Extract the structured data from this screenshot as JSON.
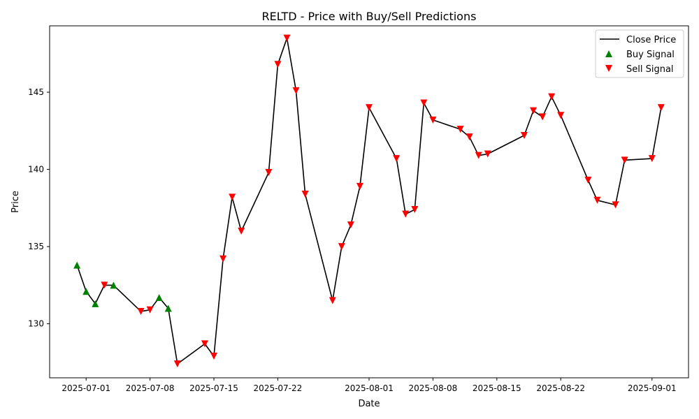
{
  "chart_data": {
    "type": "line",
    "title": "RELTD - Price with Buy/Sell Predictions",
    "xlabel": "Date",
    "ylabel": "Price",
    "x_ticks": [
      {
        "label": "2025-07-01",
        "day": 1
      },
      {
        "label": "2025-07-08",
        "day": 8
      },
      {
        "label": "2025-07-15",
        "day": 15
      },
      {
        "label": "2025-07-22",
        "day": 22
      },
      {
        "label": "2025-08-01",
        "day": 32
      },
      {
        "label": "2025-08-08",
        "day": 39
      },
      {
        "label": "2025-08-15",
        "day": 46
      },
      {
        "label": "2025-08-22",
        "day": 53
      },
      {
        "label": "2025-09-01",
        "day": 63
      }
    ],
    "y_ticks": [
      130,
      135,
      140,
      145
    ],
    "xlim": [
      "2025-06-27",
      "2025-09-05"
    ],
    "ylim": [
      126.5,
      149.3
    ],
    "legend": {
      "position": "top-right",
      "entries": [
        {
          "label": "Close Price",
          "kind": "line",
          "color": "#000000"
        },
        {
          "label": "Buy Signal",
          "kind": "triangle-up",
          "color": "#008000"
        },
        {
          "label": "Sell Signal",
          "kind": "triangle-down",
          "color": "#ff0000"
        }
      ]
    },
    "series": [
      {
        "name": "Close Price",
        "color": "#000000",
        "points": [
          {
            "date": "2025-06-30",
            "day": 0,
            "value": 133.8,
            "signal": "buy"
          },
          {
            "date": "2025-07-01",
            "day": 1,
            "value": 132.1,
            "signal": "buy"
          },
          {
            "date": "2025-07-02",
            "day": 2,
            "value": 131.3,
            "signal": "buy"
          },
          {
            "date": "2025-07-03",
            "day": 3,
            "value": 132.5,
            "signal": "sell"
          },
          {
            "date": "2025-07-04",
            "day": 4,
            "value": 132.5,
            "signal": "buy"
          },
          {
            "date": "2025-07-07",
            "day": 7,
            "value": 130.8,
            "signal": "sell"
          },
          {
            "date": "2025-07-08",
            "day": 8,
            "value": 130.9,
            "signal": "sell"
          },
          {
            "date": "2025-07-09",
            "day": 9,
            "value": 131.7,
            "signal": "buy"
          },
          {
            "date": "2025-07-10",
            "day": 10,
            "value": 131.0,
            "signal": "buy"
          },
          {
            "date": "2025-07-11",
            "day": 11,
            "value": 127.4,
            "signal": "sell"
          },
          {
            "date": "2025-07-14",
            "day": 14,
            "value": 128.7,
            "signal": "sell"
          },
          {
            "date": "2025-07-15",
            "day": 15,
            "value": 127.9,
            "signal": "sell"
          },
          {
            "date": "2025-07-16",
            "day": 16,
            "value": 134.2,
            "signal": "sell"
          },
          {
            "date": "2025-07-17",
            "day": 17,
            "value": 138.2,
            "signal": "sell"
          },
          {
            "date": "2025-07-18",
            "day": 18,
            "value": 136.0,
            "signal": "sell"
          },
          {
            "date": "2025-07-21",
            "day": 21,
            "value": 139.8,
            "signal": "sell"
          },
          {
            "date": "2025-07-22",
            "day": 22,
            "value": 146.8,
            "signal": "sell"
          },
          {
            "date": "2025-07-23",
            "day": 23,
            "value": 148.5,
            "signal": "sell"
          },
          {
            "date": "2025-07-24",
            "day": 24,
            "value": 145.1,
            "signal": "sell"
          },
          {
            "date": "2025-07-25",
            "day": 25,
            "value": 138.4,
            "signal": "sell"
          },
          {
            "date": "2025-07-28",
            "day": 28,
            "value": 131.5,
            "signal": "sell"
          },
          {
            "date": "2025-07-29",
            "day": 29,
            "value": 135.0,
            "signal": "sell"
          },
          {
            "date": "2025-07-30",
            "day": 30,
            "value": 136.4,
            "signal": "sell"
          },
          {
            "date": "2025-07-31",
            "day": 31,
            "value": 138.9,
            "signal": "sell"
          },
          {
            "date": "2025-08-01",
            "day": 32,
            "value": 144.0,
            "signal": "sell"
          },
          {
            "date": "2025-08-04",
            "day": 35,
            "value": 140.7,
            "signal": "sell"
          },
          {
            "date": "2025-08-05",
            "day": 36,
            "value": 137.1,
            "signal": "sell"
          },
          {
            "date": "2025-08-06",
            "day": 37,
            "value": 137.4,
            "signal": "sell"
          },
          {
            "date": "2025-08-07",
            "day": 38,
            "value": 144.3,
            "signal": "sell"
          },
          {
            "date": "2025-08-08",
            "day": 39,
            "value": 143.2,
            "signal": "sell"
          },
          {
            "date": "2025-08-11",
            "day": 42,
            "value": 142.6,
            "signal": "sell"
          },
          {
            "date": "2025-08-12",
            "day": 43,
            "value": 142.1,
            "signal": "sell"
          },
          {
            "date": "2025-08-13",
            "day": 44,
            "value": 140.9,
            "signal": "sell"
          },
          {
            "date": "2025-08-14",
            "day": 45,
            "value": 141.0,
            "signal": "sell"
          },
          {
            "date": "2025-08-18",
            "day": 49,
            "value": 142.2,
            "signal": "sell"
          },
          {
            "date": "2025-08-19",
            "day": 50,
            "value": 143.8,
            "signal": "sell"
          },
          {
            "date": "2025-08-20",
            "day": 51,
            "value": 143.4,
            "signal": "sell"
          },
          {
            "date": "2025-08-21",
            "day": 52,
            "value": 144.7,
            "signal": "sell"
          },
          {
            "date": "2025-08-22",
            "day": 53,
            "value": 143.5,
            "signal": "sell"
          },
          {
            "date": "2025-08-25",
            "day": 56,
            "value": 139.3,
            "signal": "sell"
          },
          {
            "date": "2025-08-26",
            "day": 57,
            "value": 138.0,
            "signal": "sell"
          },
          {
            "date": "2025-08-28",
            "day": 59,
            "value": 137.7,
            "signal": "sell"
          },
          {
            "date": "2025-08-29",
            "day": 60,
            "value": 140.6,
            "signal": "sell"
          },
          {
            "date": "2025-09-01",
            "day": 63,
            "value": 140.7,
            "signal": "sell"
          },
          {
            "date": "2025-09-02",
            "day": 64,
            "value": 144.0,
            "signal": "sell"
          }
        ]
      }
    ],
    "grid": false
  }
}
